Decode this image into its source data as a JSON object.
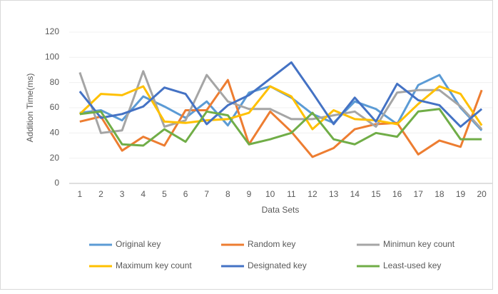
{
  "chart_data": {
    "type": "line",
    "y_label": "Addition Time(ms)",
    "x_label": "Data Sets",
    "categories": [
      "1",
      "2",
      "3",
      "4",
      "5",
      "6",
      "7",
      "8",
      "9",
      "10",
      "11",
      "12",
      "13",
      "14",
      "15",
      "16",
      "17",
      "18",
      "19",
      "20"
    ],
    "series": [
      {
        "name": "Original key",
        "color": "#5b9bd5",
        "values": [
          56,
          58,
          50,
          69,
          61,
          52,
          65,
          46,
          72,
          77,
          68,
          55,
          48,
          65,
          59,
          47,
          78,
          86,
          60,
          42
        ]
      },
      {
        "name": "Random key",
        "color": "#ed7d31",
        "values": [
          49,
          53,
          26,
          37,
          30,
          58,
          58,
          82,
          31,
          57,
          41,
          21,
          28,
          43,
          47,
          48,
          23,
          34,
          29,
          74
        ]
      },
      {
        "name": "Minimun key count",
        "color": "#a5a5a5",
        "values": [
          88,
          40,
          42,
          89,
          45,
          50,
          86,
          65,
          59,
          59,
          51,
          51,
          54,
          57,
          45,
          72,
          74,
          74,
          61,
          43
        ]
      },
      {
        "name": "Maximum key count",
        "color": "#ffc000",
        "values": [
          55,
          71,
          70,
          77,
          49,
          48,
          50,
          51,
          56,
          77,
          69,
          43,
          58,
          51,
          50,
          47,
          63,
          77,
          71,
          46
        ]
      },
      {
        "name": "Designated key",
        "color": "#4472c4",
        "values": [
          73,
          52,
          55,
          61,
          76,
          71,
          47,
          62,
          70,
          83,
          96,
          72,
          47,
          68,
          49,
          79,
          66,
          62,
          45,
          59
        ]
      },
      {
        "name": "Least-used key",
        "color": "#70ad47",
        "values": [
          55,
          57,
          31,
          30,
          43,
          33,
          57,
          54,
          31,
          35,
          40,
          56,
          35,
          31,
          40,
          37,
          57,
          59,
          35,
          35
        ]
      }
    ],
    "ylim": [
      0,
      120
    ],
    "yticks": [
      0,
      20,
      40,
      60,
      80,
      100,
      120
    ],
    "grid": true
  }
}
